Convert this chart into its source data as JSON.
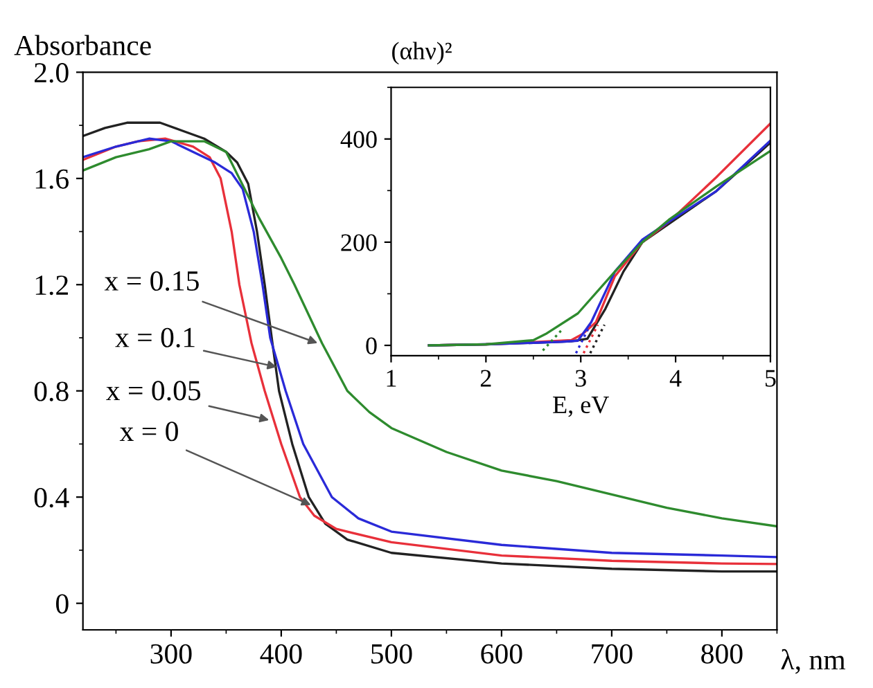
{
  "chart_data": [
    {
      "type": "line",
      "ylabel": "Absorbance",
      "xlabel": "λ, nm",
      "xlim": [
        220,
        850
      ],
      "ylim": [
        -0.1,
        2.0
      ],
      "xticks": [
        300,
        400,
        500,
        600,
        700,
        800
      ],
      "yticks": [
        0,
        0.4,
        0.8,
        1.2,
        1.6,
        {
          "value": 2.0,
          "label": "2.0"
        }
      ],
      "grid": false,
      "legend": false,
      "line_style": "solid",
      "series": [
        {
          "color": "#222222",
          "x": [
            220,
            240,
            260,
            290,
            310,
            330,
            350,
            360,
            370,
            378,
            385,
            392,
            398,
            410,
            425,
            440,
            460,
            500,
            600,
            700,
            800,
            850
          ],
          "values": [
            1.76,
            1.79,
            1.81,
            1.81,
            1.78,
            1.75,
            1.7,
            1.66,
            1.58,
            1.4,
            1.2,
            0.98,
            0.8,
            0.6,
            0.4,
            0.3,
            0.24,
            0.19,
            0.15,
            0.13,
            0.12,
            0.12
          ]
        },
        {
          "color": "#e8303a",
          "x": [
            220,
            250,
            270,
            295,
            320,
            335,
            345,
            355,
            362,
            373,
            385,
            400,
            417,
            430,
            450,
            500,
            600,
            700,
            800,
            850
          ],
          "values": [
            1.67,
            1.72,
            1.74,
            1.75,
            1.72,
            1.68,
            1.6,
            1.4,
            1.2,
            0.98,
            0.8,
            0.6,
            0.4,
            0.33,
            0.28,
            0.23,
            0.18,
            0.16,
            0.15,
            0.148
          ]
        },
        {
          "color": "#2a2ad8",
          "x": [
            220,
            250,
            280,
            300,
            320,
            340,
            355,
            365,
            375,
            383,
            390,
            404,
            420,
            446,
            470,
            500,
            600,
            700,
            800,
            850
          ],
          "values": [
            1.68,
            1.72,
            1.75,
            1.74,
            1.7,
            1.66,
            1.62,
            1.56,
            1.4,
            1.2,
            1.0,
            0.8,
            0.6,
            0.4,
            0.32,
            0.27,
            0.22,
            0.19,
            0.18,
            0.174
          ]
        },
        {
          "color": "#2e8b2e",
          "x": [
            220,
            250,
            280,
            300,
            330,
            350,
            362,
            380,
            400,
            412,
            437,
            460,
            480,
            500,
            550,
            600,
            650,
            700,
            750,
            800,
            850
          ],
          "values": [
            1.63,
            1.68,
            1.71,
            1.74,
            1.74,
            1.7,
            1.6,
            1.45,
            1.3,
            1.2,
            0.98,
            0.8,
            0.72,
            0.66,
            0.57,
            0.5,
            0.46,
            0.41,
            0.36,
            0.32,
            0.29
          ]
        }
      ],
      "annotations": [
        {
          "text": "x = 0.15",
          "x": 433,
          "y": 0.98
        },
        {
          "text": "x = 0.1",
          "x": 396,
          "y": 0.89
        },
        {
          "text": "x = 0.05",
          "x": 389,
          "y": 0.69
        },
        {
          "text": "x = 0",
          "x": 427,
          "y": 0.37
        }
      ]
    },
    {
      "type": "line",
      "ylabel": "(αhν)²",
      "xlabel": "E, eV",
      "xlim": [
        1,
        5
      ],
      "ylim": [
        -20,
        500
      ],
      "xticks": [
        1,
        2,
        3,
        4,
        5
      ],
      "yticks": [
        0,
        200,
        400
      ],
      "grid": false,
      "legend": false,
      "series": [
        {
          "color": "#222222",
          "x": [
            1.4,
            2.0,
            2.5,
            2.9,
            3.07,
            3.26,
            3.45,
            3.65,
            3.94,
            4.43,
            5.0
          ],
          "values": [
            0,
            2,
            5,
            8,
            13,
            71,
            143,
            200,
            237,
            299,
            393
          ]
        },
        {
          "color": "#e8303a",
          "x": [
            1.4,
            2.0,
            2.9,
            3.02,
            3.16,
            3.36,
            3.65,
            3.94,
            4.43,
            5.0
          ],
          "values": [
            0,
            2,
            10,
            22,
            45,
            134,
            200,
            241,
            326,
            430
          ]
        },
        {
          "color": "#2a2ad8",
          "x": [
            1.4,
            2.0,
            2.5,
            2.8,
            2.97,
            3.11,
            3.36,
            3.65,
            3.94,
            4.43,
            5.0
          ],
          "values": [
            0,
            2,
            5,
            7,
            9,
            45,
            143,
            205,
            241,
            299,
            397
          ]
        },
        {
          "color": "#2e8b2e",
          "x": [
            1.4,
            2.0,
            2.5,
            2.63,
            2.97,
            3.36,
            3.65,
            3.94,
            4.43,
            5.0
          ],
          "values": [
            0,
            2,
            10,
            22,
            62,
            143,
            200,
            245,
            308,
            377
          ]
        },
        {
          "color": "#2e8b2e",
          "line_style": "dotted",
          "x": [
            2.6,
            2.8
          ],
          "values": [
            -10,
            30
          ]
        },
        {
          "color": "#2a2ad8",
          "line_style": "dotted",
          "x": [
            2.95,
            3.1
          ],
          "values": [
            -15,
            40
          ]
        },
        {
          "color": "#e8303a",
          "line_style": "dotted",
          "x": [
            3.03,
            3.18
          ],
          "values": [
            -15,
            40
          ]
        },
        {
          "color": "#222222",
          "line_style": "dotted",
          "x": [
            3.1,
            3.25
          ],
          "values": [
            -15,
            40
          ]
        }
      ]
    }
  ]
}
